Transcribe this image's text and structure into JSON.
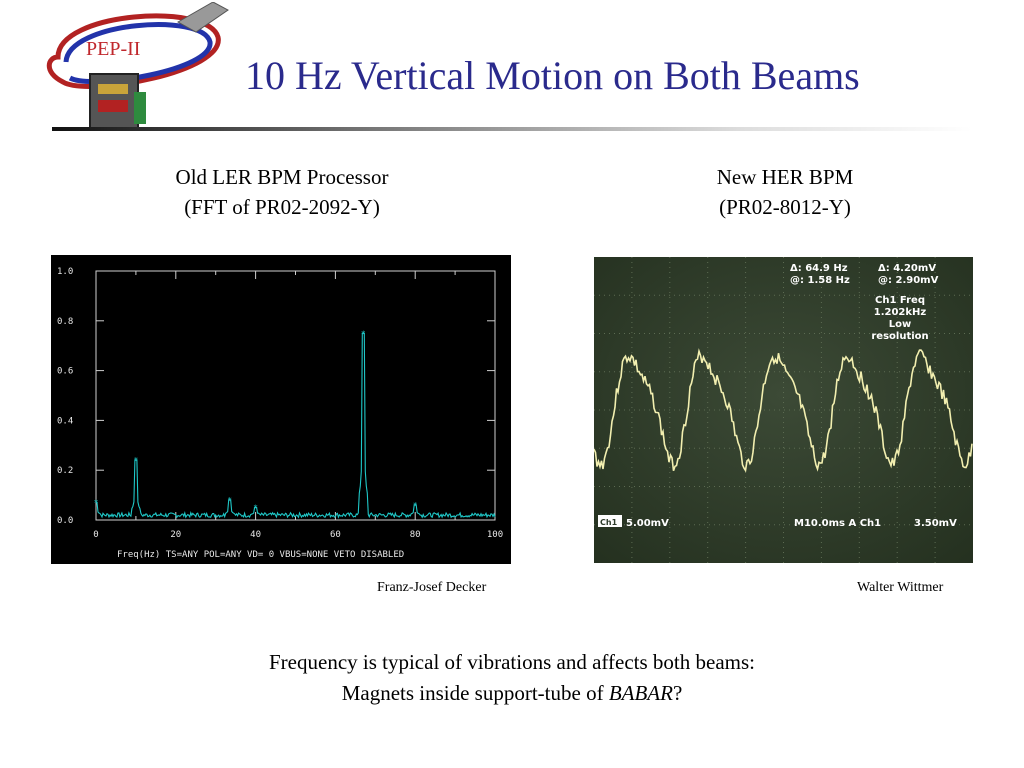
{
  "slide": {
    "title": "10 Hz Vertical Motion on Both Beams",
    "logo_text": "PEP-II",
    "left_caption_line1": "Old LER BPM Processor",
    "left_caption_line2": "(FFT of PR02-2092-Y)",
    "right_caption_line1": "New HER BPM",
    "right_caption_line2": "(PR02-8012-Y)",
    "left_credit": "Franz-Josef Decker",
    "right_credit": "Walter Wittmer",
    "bottom_line1": "Frequency is typical of vibrations and affects both beams:",
    "bottom_line2_prefix": "Magnets inside support-tube of ",
    "bottom_line2_babar": "BABAR",
    "bottom_line2_suffix": "?"
  },
  "colors": {
    "title": "#2a2a8c",
    "fft_background": "#000000",
    "fft_trace": "#1fc8c8",
    "scope_background": "#2f3d2c",
    "scope_trace": "#f2efb0"
  },
  "chart_data": [
    {
      "type": "line",
      "xlabel": "Freq(Hz) TS=ANY POL=ANY   VD= 0 VBUS=NONE VETO DISABLED",
      "ylabel": "",
      "xlim": [
        0,
        100
      ],
      "ylim": [
        0,
        1.0
      ],
      "x_ticks": [
        "0",
        "20",
        "40",
        "60",
        "80",
        "100"
      ],
      "y_ticks": [
        "0.0",
        "0.2",
        "0.4",
        "0.6",
        "0.8",
        "1.0"
      ],
      "grid": false,
      "baseline": 0.02,
      "peaks": [
        {
          "x": 0,
          "y": 0.07
        },
        {
          "x": 10,
          "y": 0.24
        },
        {
          "x": 33.5,
          "y": 0.08
        },
        {
          "x": 40,
          "y": 0.05
        },
        {
          "x": 67,
          "y": 0.75
        },
        {
          "x": 80,
          "y": 0.06
        }
      ]
    },
    {
      "type": "line",
      "readout_delta_freq": "Δ: 64.9 Hz",
      "readout_at_freq": "@: 1.58 Hz",
      "readout_delta_volt": "Δ: 4.20mV",
      "readout_at_volt": "@: 2.90mV",
      "ch1_freq_label": "Ch1 Freq",
      "ch1_freq_value": "1.202kHz",
      "resolution_line1": "Low",
      "resolution_line2": "resolution",
      "channel_label": "Ch1",
      "volts_per_div": "5.00mV",
      "timebase": "M10.0ms A Ch1",
      "trigger_level": "3.50mV",
      "grid": true,
      "frequency_hz": 10,
      "cycles_shown": 5.2
    }
  ]
}
